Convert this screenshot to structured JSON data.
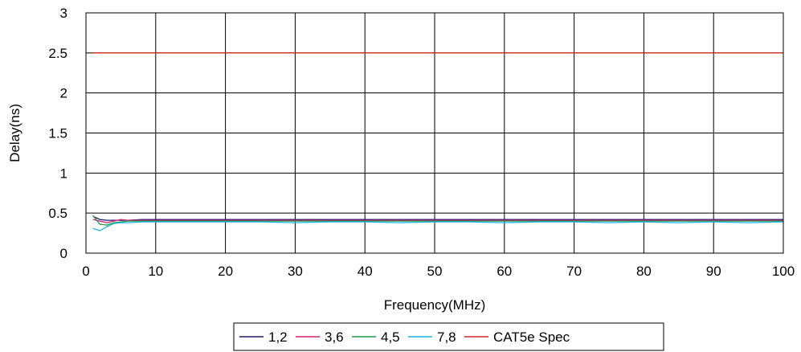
{
  "chart_data": {
    "type": "line",
    "xlabel": "Frequency(MHz)",
    "ylabel": "Delay(ns)",
    "xlim": [
      0,
      100
    ],
    "ylim": [
      0,
      3
    ],
    "x_ticks": [
      0,
      10,
      20,
      30,
      40,
      50,
      60,
      70,
      80,
      90,
      100
    ],
    "y_ticks": [
      0,
      0.5,
      1,
      1.5,
      2,
      2.5,
      3
    ],
    "x_tick_labels": [
      "0",
      "10",
      "20",
      "30",
      "40",
      "50",
      "60",
      "70",
      "80",
      "90",
      "100"
    ],
    "y_tick_labels": [
      "0",
      "0.5",
      "1",
      "1.5",
      "2",
      "2.5",
      "3"
    ],
    "grid": true,
    "legend_position": "bottom",
    "series": [
      {
        "name": "1,2",
        "color": "#1f1a6e",
        "x": [
          1,
          2,
          3,
          4,
          5,
          6,
          8,
          10,
          12,
          15,
          20,
          25,
          30,
          35,
          40,
          45,
          50,
          55,
          60,
          65,
          70,
          75,
          80,
          85,
          90,
          95,
          100
        ],
        "y": [
          0.46,
          0.42,
          0.41,
          0.41,
          0.41,
          0.41,
          0.42,
          0.42,
          0.42,
          0.42,
          0.42,
          0.42,
          0.42,
          0.42,
          0.42,
          0.42,
          0.42,
          0.42,
          0.42,
          0.42,
          0.42,
          0.42,
          0.42,
          0.42,
          0.42,
          0.42,
          0.42
        ]
      },
      {
        "name": "3,6",
        "color": "#d4206e",
        "x": [
          1,
          2,
          3,
          4,
          5,
          6,
          8,
          10,
          12,
          15,
          20,
          25,
          30,
          35,
          40,
          45,
          50,
          55,
          60,
          65,
          70,
          75,
          80,
          85,
          90,
          95,
          100
        ],
        "y": [
          0.42,
          0.4,
          0.38,
          0.4,
          0.42,
          0.41,
          0.41,
          0.41,
          0.41,
          0.41,
          0.41,
          0.41,
          0.41,
          0.41,
          0.41,
          0.41,
          0.41,
          0.41,
          0.41,
          0.41,
          0.41,
          0.41,
          0.41,
          0.41,
          0.41,
          0.41,
          0.41
        ]
      },
      {
        "name": "4,5",
        "color": "#1e9a4a",
        "x": [
          1,
          2,
          3,
          4,
          5,
          6,
          8,
          10,
          12,
          15,
          20,
          25,
          30,
          35,
          40,
          45,
          50,
          55,
          60,
          65,
          70,
          75,
          80,
          85,
          90,
          95,
          100
        ],
        "y": [
          0.47,
          0.36,
          0.35,
          0.38,
          0.39,
          0.4,
          0.4,
          0.4,
          0.4,
          0.4,
          0.4,
          0.4,
          0.4,
          0.4,
          0.4,
          0.4,
          0.4,
          0.4,
          0.4,
          0.4,
          0.4,
          0.4,
          0.4,
          0.4,
          0.4,
          0.4,
          0.4
        ]
      },
      {
        "name": "7,8",
        "color": "#1ab4e6",
        "x": [
          1,
          2,
          3,
          4,
          5,
          6,
          8,
          10,
          12,
          15,
          20,
          25,
          30,
          35,
          40,
          45,
          50,
          55,
          60,
          65,
          70,
          75,
          80,
          85,
          90,
          95,
          100
        ],
        "y": [
          0.31,
          0.28,
          0.33,
          0.37,
          0.38,
          0.38,
          0.39,
          0.39,
          0.39,
          0.39,
          0.39,
          0.39,
          0.38,
          0.39,
          0.39,
          0.38,
          0.39,
          0.39,
          0.38,
          0.39,
          0.39,
          0.38,
          0.39,
          0.38,
          0.39,
          0.38,
          0.39
        ]
      },
      {
        "name": "CAT5e Spec",
        "color": "#d0281e",
        "x": [
          1,
          100
        ],
        "y": [
          2.5,
          2.5
        ]
      }
    ]
  }
}
